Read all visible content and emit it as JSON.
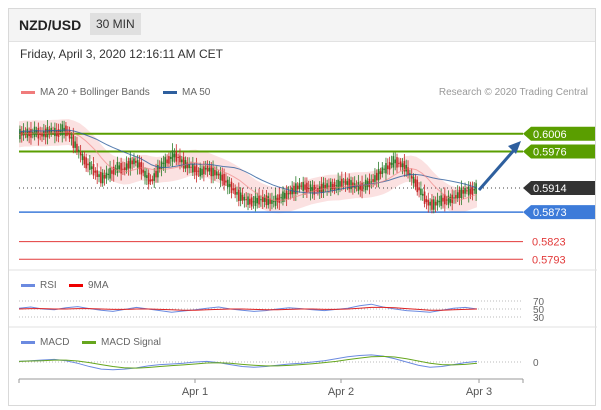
{
  "header": {
    "symbol": "NZD/USD",
    "timeframe": "30 MIN",
    "datetime": "Friday, April 3, 2020 12:16:11 AM CET"
  },
  "legend": {
    "ma20": "MA 20 + Bollinger Bands",
    "ma50": "MA 50",
    "credit": "Research © 2020 Trading Central",
    "rsi": "RSI",
    "rsi_ma": "9MA",
    "macd": "MACD",
    "macd_signal": "MACD Signal"
  },
  "colors": {
    "up": "#2a7d2a",
    "down": "#c62828",
    "resistance": "#5a9e00",
    "current": "#333333",
    "support": "#3d7bd9",
    "support_low": "#e23a3a",
    "arrow": "#2e5f9e",
    "bb_fill": "#fadada",
    "ma20": "#f07b7b",
    "ma50": "#2e5f9e",
    "rsi": "#6b8ae0",
    "macd": "#6b8ae0",
    "macd_signal": "#66a61e"
  },
  "chart_data": [
    {
      "type": "candlestick",
      "title": "NZD/USD",
      "x_ticks": [
        "Apr 1",
        "Apr 2",
        "Apr 3"
      ],
      "levels": [
        {
          "value": 0.6006,
          "label": "0.6006",
          "kind": "resistance"
        },
        {
          "value": 0.5976,
          "label": "0.5976",
          "kind": "resistance"
        },
        {
          "value": 0.5914,
          "label": "0.5914",
          "kind": "current"
        },
        {
          "value": 0.5873,
          "label": "0.5873",
          "kind": "support"
        },
        {
          "value": 0.5823,
          "label": "0.5823",
          "kind": "support_low"
        },
        {
          "value": 0.5793,
          "label": "0.5793",
          "kind": "support_low"
        }
      ],
      "close_path": [
        0.6005,
        0.6008,
        0.6006,
        0.601,
        0.6004,
        0.6008,
        0.6012,
        0.6006,
        0.6014,
        0.6008,
        0.599,
        0.5975,
        0.5958,
        0.595,
        0.594,
        0.593,
        0.5936,
        0.5942,
        0.595,
        0.5945,
        0.5955,
        0.596,
        0.595,
        0.5935,
        0.5925,
        0.594,
        0.5955,
        0.596,
        0.597,
        0.5965,
        0.5955,
        0.595,
        0.5945,
        0.594,
        0.5948,
        0.5942,
        0.5938,
        0.593,
        0.592,
        0.591,
        0.59,
        0.5895,
        0.589,
        0.5892,
        0.5895,
        0.5893,
        0.589,
        0.5895,
        0.59,
        0.5905,
        0.5912,
        0.5918,
        0.5915,
        0.5912,
        0.591,
        0.5914,
        0.5918,
        0.5916,
        0.592,
        0.5925,
        0.592,
        0.5918,
        0.5915,
        0.592,
        0.5925,
        0.5935,
        0.5945,
        0.595,
        0.596,
        0.5955,
        0.595,
        0.5935,
        0.592,
        0.5905,
        0.589,
        0.5885,
        0.589,
        0.5895,
        0.5893,
        0.5898,
        0.5905,
        0.591,
        0.5908,
        0.5914
      ],
      "ylim": [
        0.5785,
        0.6065
      ]
    },
    {
      "type": "line",
      "title": "RSI",
      "ticks": [
        "70",
        "50",
        "30"
      ],
      "ylim": [
        20,
        80
      ],
      "series": [
        {
          "name": "RSI",
          "values": [
            52,
            55,
            50,
            48,
            53,
            56,
            51,
            47,
            44,
            49,
            54,
            50,
            46,
            42,
            45,
            48,
            52,
            55,
            50,
            47,
            44,
            46,
            50,
            53,
            51,
            48,
            46,
            49,
            52,
            58,
            62,
            55,
            50,
            46,
            44,
            42,
            47,
            52,
            54,
            50
          ]
        },
        {
          "name": "9MA",
          "values": [
            50,
            51,
            51,
            50,
            50,
            51,
            51,
            50,
            49,
            49,
            50,
            50,
            49,
            48,
            47,
            47,
            48,
            49,
            50,
            50,
            49,
            48,
            48,
            49,
            50,
            50,
            49,
            49,
            50,
            52,
            54,
            54,
            53,
            51,
            49,
            47,
            47,
            48,
            49,
            50
          ]
        }
      ]
    },
    {
      "type": "line",
      "title": "MACD",
      "ticks": [
        "0"
      ],
      "ylim": [
        -1,
        1
      ],
      "series": [
        {
          "name": "MACD",
          "values": [
            0.05,
            0.1,
            0.15,
            0.2,
            0.1,
            -0.1,
            -0.35,
            -0.55,
            -0.6,
            -0.55,
            -0.45,
            -0.3,
            -0.2,
            -0.15,
            -0.1,
            0.0,
            0.05,
            -0.05,
            -0.2,
            -0.35,
            -0.4,
            -0.35,
            -0.25,
            -0.15,
            -0.1,
            0.0,
            0.1,
            0.25,
            0.4,
            0.5,
            0.55,
            0.45,
            0.25,
            0.0,
            -0.25,
            -0.4,
            -0.35,
            -0.2,
            -0.05,
            0.05
          ]
        },
        {
          "name": "MACD Signal",
          "values": [
            0.05,
            0.08,
            0.1,
            0.14,
            0.14,
            0.08,
            -0.05,
            -0.2,
            -0.35,
            -0.45,
            -0.47,
            -0.42,
            -0.35,
            -0.28,
            -0.22,
            -0.15,
            -0.08,
            -0.06,
            -0.1,
            -0.18,
            -0.25,
            -0.3,
            -0.3,
            -0.26,
            -0.2,
            -0.13,
            -0.05,
            0.05,
            0.18,
            0.3,
            0.4,
            0.43,
            0.38,
            0.25,
            0.08,
            -0.1,
            -0.2,
            -0.22,
            -0.18,
            -0.1
          ]
        }
      ]
    }
  ]
}
